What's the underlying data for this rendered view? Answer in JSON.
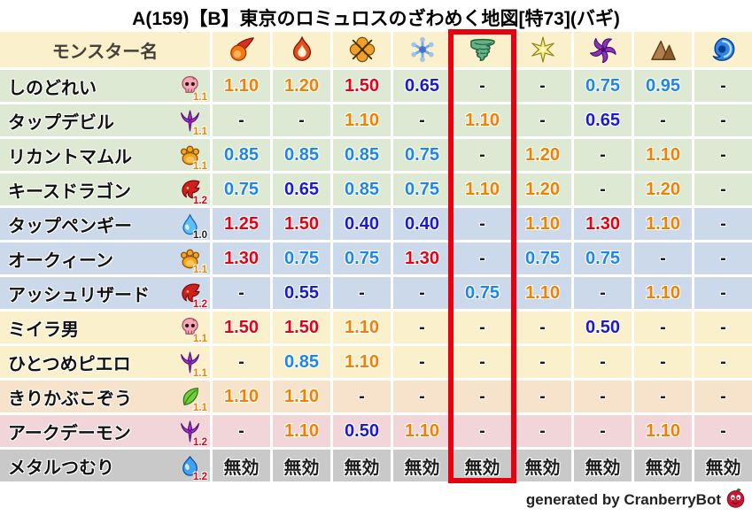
{
  "title": "A(159)【B】東京のロミュロスのざわめく地図[特73](バギ)",
  "header": {
    "name_column": "モンスター名",
    "element_icons": [
      "fireball-icon",
      "flame-icon",
      "explosion-icon",
      "snowflake-icon",
      "tornado-icon",
      "spark-icon",
      "pinwheel-icon",
      "mountain-icon",
      "wave-icon"
    ],
    "highlighted_icon": "tornado-icon",
    "highlighted_column_index": 4
  },
  "colors": {
    "red": "#e50012",
    "orange": "#ef8200",
    "light_blue": "#1e87e5",
    "dark_blue": "#1a1ace",
    "black": "#1c1c1c",
    "header_bg": "#fbf0cc",
    "row_green": "#dde9d2",
    "row_blue": "#ccd9ea",
    "row_cream": "#fbf0cc",
    "row_peach": "#f7e3cb",
    "row_pink": "#f2d5d8",
    "row_gray": "#c9c9c9",
    "highlight": "#e60012"
  },
  "chart_data": {
    "type": "table",
    "title": "A(159)【B】東京のロミュロスのざわめく地図[特73](バギ)",
    "columns": [
      "モンスター名",
      "fireball",
      "flame",
      "explosion",
      "snowflake",
      "tornado",
      "spark",
      "pinwheel",
      "mountain",
      "wave"
    ],
    "highlighted_column": "tornado",
    "rows": [
      {
        "name": "しのどれい",
        "family_icon": "skull-icon",
        "modifier": "1.1",
        "modifier_color": "orange",
        "row_color": "row_green",
        "values": [
          "1.10",
          "1.20",
          "1.50",
          "0.65",
          "-",
          "-",
          "0.75",
          "0.95",
          "-"
        ],
        "value_colors": [
          "orange",
          "orange",
          "red",
          "dark_blue",
          "black",
          "black",
          "light_blue",
          "light_blue",
          "black"
        ]
      },
      {
        "name": "タップデビル",
        "family_icon": "trident-icon",
        "modifier": "1.1",
        "modifier_color": "orange",
        "row_color": "row_green",
        "values": [
          "-",
          "-",
          "1.10",
          "-",
          "1.10",
          "-",
          "0.65",
          "-",
          "-"
        ],
        "value_colors": [
          "black",
          "black",
          "orange",
          "black",
          "orange",
          "black",
          "dark_blue",
          "black",
          "black"
        ]
      },
      {
        "name": "リカントマムル",
        "family_icon": "paw-icon",
        "modifier": "1.1",
        "modifier_color": "orange",
        "row_color": "row_green",
        "values": [
          "0.85",
          "0.85",
          "0.85",
          "0.75",
          "-",
          "1.20",
          "-",
          "1.10",
          "-"
        ],
        "value_colors": [
          "light_blue",
          "light_blue",
          "light_blue",
          "light_blue",
          "black",
          "orange",
          "black",
          "orange",
          "black"
        ]
      },
      {
        "name": "キースドラゴン",
        "family_icon": "dragon-icon",
        "modifier": "1.2",
        "modifier_color": "red",
        "row_color": "row_green",
        "values": [
          "0.75",
          "0.65",
          "0.85",
          "0.75",
          "1.10",
          "1.20",
          "-",
          "1.20",
          "-"
        ],
        "value_colors": [
          "light_blue",
          "dark_blue",
          "light_blue",
          "light_blue",
          "orange",
          "orange",
          "black",
          "orange",
          "black"
        ]
      },
      {
        "name": "タップペンギー",
        "family_icon": "droplet-icon",
        "modifier": "1.0",
        "modifier_color": "black",
        "row_color": "row_blue",
        "values": [
          "1.25",
          "1.50",
          "0.40",
          "0.40",
          "-",
          "1.10",
          "1.30",
          "1.10",
          "-"
        ],
        "value_colors": [
          "red",
          "red",
          "dark_blue",
          "dark_blue",
          "black",
          "orange",
          "red",
          "orange",
          "black"
        ]
      },
      {
        "name": "オークィーン",
        "family_icon": "paw-icon",
        "modifier": "1.1",
        "modifier_color": "orange",
        "row_color": "row_blue",
        "values": [
          "1.30",
          "0.75",
          "0.75",
          "1.30",
          "-",
          "0.75",
          "0.75",
          "-",
          "-"
        ],
        "value_colors": [
          "red",
          "light_blue",
          "light_blue",
          "red",
          "black",
          "light_blue",
          "light_blue",
          "black",
          "black"
        ]
      },
      {
        "name": "アッシュリザード",
        "family_icon": "dragon-icon",
        "modifier": "1.2",
        "modifier_color": "red",
        "row_color": "row_blue",
        "values": [
          "-",
          "0.55",
          "-",
          "-",
          "0.75",
          "1.10",
          "-",
          "1.10",
          "-"
        ],
        "value_colors": [
          "black",
          "dark_blue",
          "black",
          "black",
          "light_blue",
          "orange",
          "black",
          "orange",
          "black"
        ]
      },
      {
        "name": "ミイラ男",
        "family_icon": "skull-icon",
        "modifier": "1.1",
        "modifier_color": "orange",
        "row_color": "row_cream",
        "values": [
          "1.50",
          "1.50",
          "1.10",
          "-",
          "-",
          "-",
          "0.50",
          "-",
          "-"
        ],
        "value_colors": [
          "red",
          "red",
          "orange",
          "black",
          "black",
          "black",
          "dark_blue",
          "black",
          "black"
        ]
      },
      {
        "name": "ひとつめピエロ",
        "family_icon": "trident-icon",
        "modifier": "1.1",
        "modifier_color": "orange",
        "row_color": "row_cream",
        "values": [
          "-",
          "0.85",
          "1.10",
          "-",
          "-",
          "-",
          "-",
          "-",
          "-"
        ],
        "value_colors": [
          "black",
          "light_blue",
          "orange",
          "black",
          "black",
          "black",
          "black",
          "black",
          "black"
        ]
      },
      {
        "name": "きりかぶこぞう",
        "family_icon": "leaf-icon",
        "modifier": "1.1",
        "modifier_color": "orange",
        "row_color": "row_peach",
        "values": [
          "1.10",
          "1.10",
          "-",
          "-",
          "-",
          "-",
          "-",
          "-",
          "-"
        ],
        "value_colors": [
          "orange",
          "orange",
          "black",
          "black",
          "black",
          "black",
          "black",
          "black",
          "black"
        ]
      },
      {
        "name": "アークデーモン",
        "family_icon": "trident-icon",
        "modifier": "1.2",
        "modifier_color": "red",
        "row_color": "row_pink",
        "values": [
          "-",
          "1.10",
          "0.50",
          "1.10",
          "-",
          "-",
          "-",
          "1.10",
          "-"
        ],
        "value_colors": [
          "black",
          "orange",
          "dark_blue",
          "orange",
          "black",
          "black",
          "black",
          "orange",
          "black"
        ]
      },
      {
        "name": "メタルつむり",
        "family_icon": "slime-icon",
        "modifier": "1.2",
        "modifier_color": "red",
        "row_color": "row_gray",
        "values": [
          "無効",
          "無効",
          "無効",
          "無効",
          "無効",
          "無効",
          "無効",
          "無効",
          "無効"
        ],
        "value_colors": [
          "black",
          "black",
          "black",
          "black",
          "black",
          "black",
          "black",
          "black",
          "black"
        ]
      }
    ]
  },
  "footer": {
    "credit": "generated by CranberryBot",
    "icon": "cranberry-icon"
  }
}
